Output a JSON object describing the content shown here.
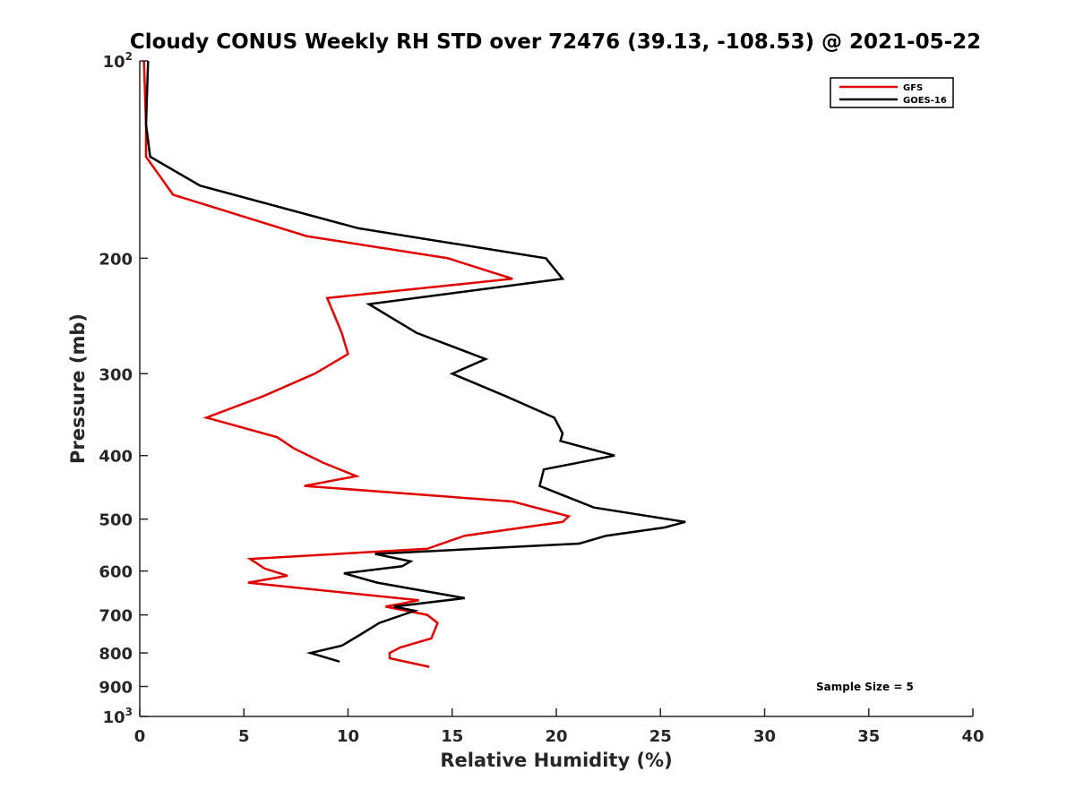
{
  "chart_data": {
    "type": "line",
    "title": "Cloudy CONUS Weekly RH STD over 72476 (39.13, -108.53) @ 2021-05-22",
    "xlabel": "Relative Humidity (%)",
    "ylabel": "Pressure (mb)",
    "xlim": [
      0,
      40
    ],
    "ylim": [
      100,
      1000
    ],
    "y_scale": "log",
    "y_reversed": true,
    "grid": false,
    "legend_position": "top-right",
    "x_ticks": [
      0,
      5,
      10,
      15,
      20,
      25,
      30,
      35,
      40
    ],
    "y_ticks": [
      {
        "value": 100,
        "base": "10",
        "exp": "2"
      },
      {
        "value": 200,
        "label": "200"
      },
      {
        "value": 300,
        "label": "300"
      },
      {
        "value": 400,
        "label": "400"
      },
      {
        "value": 500,
        "label": "500"
      },
      {
        "value": 600,
        "label": "600"
      },
      {
        "value": 700,
        "label": "700"
      },
      {
        "value": 800,
        "label": "800"
      },
      {
        "value": 900,
        "label": "900"
      },
      {
        "value": 1000,
        "base": "10",
        "exp": "3"
      }
    ],
    "annotation": "Sample Size = 5",
    "series": [
      {
        "name": "GFS",
        "color": "#e00000",
        "points": [
          [
            0.2,
            100
          ],
          [
            0.3,
            125
          ],
          [
            0.3,
            140
          ],
          [
            1.6,
            160
          ],
          [
            8.0,
            185
          ],
          [
            14.8,
            200
          ],
          [
            17.9,
            215
          ],
          [
            9.0,
            230
          ],
          [
            9.7,
            260
          ],
          [
            10.0,
            280
          ],
          [
            8.4,
            300
          ],
          [
            5.9,
            325
          ],
          [
            3.2,
            350
          ],
          [
            6.6,
            375
          ],
          [
            7.4,
            390
          ],
          [
            8.8,
            410
          ],
          [
            10.4,
            430
          ],
          [
            7.9,
            445
          ],
          [
            17.9,
            470
          ],
          [
            20.6,
            495
          ],
          [
            20.3,
            505
          ],
          [
            15.6,
            530
          ],
          [
            13.8,
            555
          ],
          [
            5.3,
            575
          ],
          [
            6.0,
            595
          ],
          [
            7.1,
            610
          ],
          [
            5.2,
            625
          ],
          [
            13.4,
            665
          ],
          [
            11.8,
            680
          ],
          [
            13.8,
            700
          ],
          [
            14.3,
            720
          ],
          [
            14.0,
            760
          ],
          [
            12.5,
            785
          ],
          [
            12.0,
            800
          ],
          [
            12.0,
            815
          ],
          [
            13.9,
            840
          ]
        ]
      },
      {
        "name": "GOES-16",
        "color": "#000000",
        "points": [
          [
            0.4,
            100
          ],
          [
            0.3,
            125
          ],
          [
            0.5,
            140
          ],
          [
            2.9,
            155
          ],
          [
            10.5,
            180
          ],
          [
            19.5,
            200
          ],
          [
            20.3,
            215
          ],
          [
            11.0,
            235
          ],
          [
            13.3,
            260
          ],
          [
            16.6,
            285
          ],
          [
            15.0,
            300
          ],
          [
            17.6,
            325
          ],
          [
            19.9,
            350
          ],
          [
            20.3,
            370
          ],
          [
            20.2,
            380
          ],
          [
            22.8,
            400
          ],
          [
            19.4,
            420
          ],
          [
            19.2,
            445
          ],
          [
            21.8,
            480
          ],
          [
            26.2,
            505
          ],
          [
            25.2,
            515
          ],
          [
            22.4,
            530
          ],
          [
            21.1,
            545
          ],
          [
            11.3,
            565
          ],
          [
            13.0,
            580
          ],
          [
            12.6,
            590
          ],
          [
            9.8,
            605
          ],
          [
            11.4,
            625
          ],
          [
            15.6,
            660
          ],
          [
            12.2,
            680
          ],
          [
            13.2,
            690
          ],
          [
            11.5,
            720
          ],
          [
            10.6,
            750
          ],
          [
            9.7,
            780
          ],
          [
            8.2,
            800
          ],
          [
            9.6,
            825
          ]
        ]
      }
    ]
  }
}
